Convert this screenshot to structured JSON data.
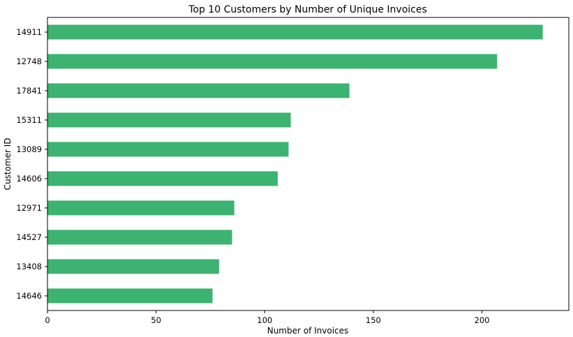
{
  "chart_data": {
    "type": "bar",
    "orientation": "horizontal",
    "title": "Top 10 Customers by Number of Unique Invoices",
    "xlabel": "Number of Invoices",
    "ylabel": "Customer ID",
    "categories": [
      "14911",
      "12748",
      "17841",
      "15311",
      "13089",
      "14606",
      "12971",
      "14527",
      "13408",
      "14646"
    ],
    "values": [
      228,
      207,
      139,
      112,
      111,
      106,
      86,
      85,
      79,
      76
    ],
    "xlim": [
      0,
      240
    ],
    "xticks": [
      0,
      50,
      100,
      150,
      200
    ],
    "bar_color": "#3cb371",
    "grid": false,
    "legend": "none"
  }
}
